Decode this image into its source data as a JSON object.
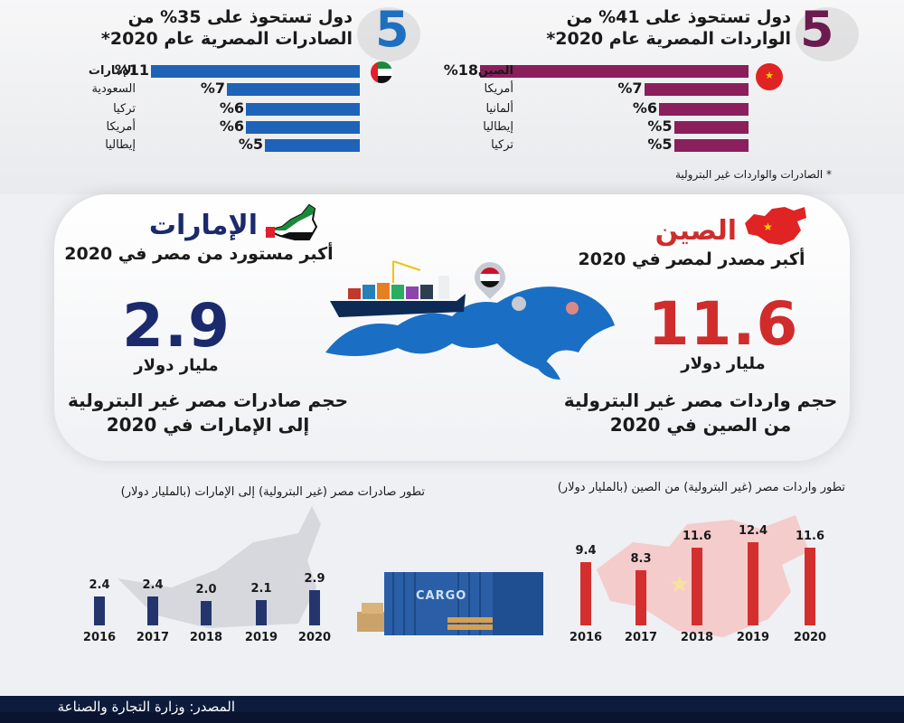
{
  "exports_header": {
    "big_number": "5",
    "line1": "دول تستحوذ على 35% من",
    "line2": "الصادرات المصرية عام 2020*",
    "color": "#1f6fc0"
  },
  "imports_header": {
    "big_number": "5",
    "line1": "دول تستحوذ على 41% من",
    "line2": "الواردات المصرية عام 2020*",
    "color": "#6b1b4e"
  },
  "footnote": "* الصادرات والواردات غير البترولية",
  "uae": {
    "name": "الإمارات",
    "subtitle": "أكبر مستورد من مصر في 2020",
    "value": "2.9",
    "unit": "مليار دولار",
    "desc1": "حجم صادرات مصر غير البترولية",
    "desc2": "إلى الإمارات في 2020"
  },
  "china": {
    "name": "الصين",
    "subtitle": "أكبر مصدر لمصر في 2020",
    "value": "11.6",
    "unit": "مليار دولار",
    "desc1": "حجم واردات مصر غير البترولية",
    "desc2": "من الصين في 2020"
  },
  "container_label": "CARGO",
  "source": "المصدر: وزارة التجارة والصناعة",
  "colors": {
    "export_bar": "#1e63b8",
    "import_bar": "#8b1f5c",
    "uae_bar": "#24356e",
    "china_bar": "#d32f2f",
    "big_blue": "#1a2a6c",
    "big_red": "#d02c2c",
    "footer": "#0d1b3c"
  },
  "chart_data": [
    {
      "type": "bar",
      "orientation": "horizontal",
      "categories": [
        "الإمارات",
        "السعودية",
        "تركيا",
        "أمريكا",
        "إيطاليا"
      ],
      "values": [
        11,
        7,
        6,
        6,
        5
      ],
      "value_labels": [
        "%11",
        "%7",
        "%6",
        "%6",
        "%5"
      ]
    },
    {
      "type": "bar",
      "orientation": "horizontal",
      "categories": [
        "الصين",
        "أمريكا",
        "ألمانيا",
        "إيطاليا",
        "تركيا"
      ],
      "values": [
        18,
        7,
        6,
        5,
        5
      ],
      "value_labels": [
        "%18",
        "%7",
        "%6",
        "%5",
        "%5"
      ]
    },
    {
      "type": "bar",
      "title": "تطور صادرات مصر (غير البترولية) إلى الإمارات (بالمليار دولار)",
      "categories": [
        "2016",
        "2017",
        "2018",
        "2019",
        "2020"
      ],
      "values": [
        2.4,
        2.4,
        2.0,
        2.1,
        2.9
      ]
    },
    {
      "type": "bar",
      "title": "تطور واردات مصر (غير البترولية) من الصين (بالمليار دولار)",
      "categories": [
        "2016",
        "2017",
        "2018",
        "2019",
        "2020"
      ],
      "values": [
        9.4,
        8.3,
        11.6,
        12.4,
        11.6
      ]
    }
  ]
}
